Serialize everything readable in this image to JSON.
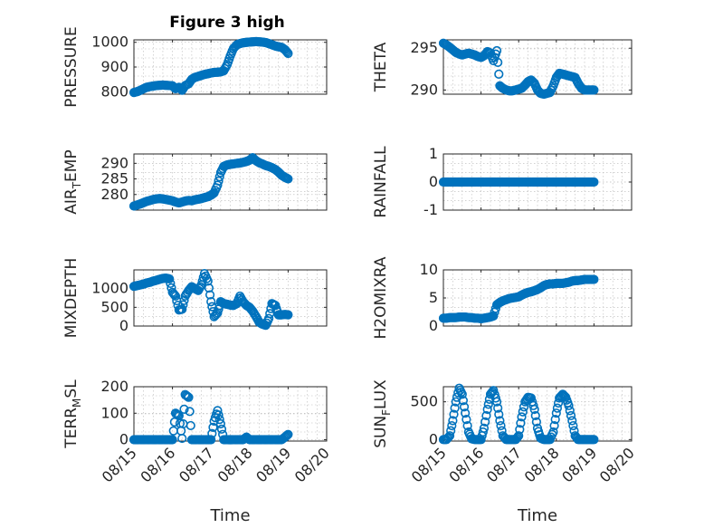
{
  "figure": {
    "title": "Figure 3 high",
    "marker_color": "#0072BD"
  },
  "chart_data": [
    {
      "type": "scatter",
      "panel": "top-left",
      "title": "Figure 3 high",
      "ylabel": "PRESSURE",
      "xlabel": "",
      "x_unit": "days since 08/15",
      "xlim": [
        0,
        5
      ],
      "ylim": [
        790,
        1010
      ],
      "yticks": [
        800,
        900,
        1000
      ],
      "xticks": [
        0,
        1,
        2,
        3,
        4,
        5
      ],
      "xtick_labels": [
        "08/15",
        "08/16",
        "08/17",
        "08/18",
        "08/19",
        "08/20"
      ],
      "show_xtick_labels": false,
      "grid": true,
      "x": [
        0.0,
        0.08,
        0.17,
        0.25,
        0.33,
        0.42,
        0.5,
        0.58,
        0.67,
        0.75,
        0.83,
        0.92,
        1.0,
        1.08,
        1.17,
        1.25,
        1.33,
        1.42,
        1.5,
        1.58,
        1.67,
        1.75,
        1.83,
        1.92,
        2.0,
        2.08,
        2.17,
        2.25,
        2.33,
        2.42,
        2.5,
        2.58,
        2.67,
        2.75,
        2.83,
        2.92,
        3.0,
        3.08,
        3.17,
        3.25,
        3.33,
        3.42,
        3.5,
        3.58,
        3.67,
        3.75,
        3.83,
        3.92,
        4.0
      ],
      "y": [
        797,
        800,
        806,
        812,
        818,
        821,
        823,
        825,
        826,
        827,
        826,
        825,
        824,
        812,
        818,
        806,
        825,
        832,
        850,
        858,
        862,
        866,
        870,
        873,
        876,
        878,
        879,
        880,
        885,
        910,
        945,
        975,
        990,
        995,
        998,
        1000,
        1001,
        1002,
        1003,
        1002,
        1001,
        999,
        995,
        990,
        985,
        982,
        980,
        970,
        955
      ]
    },
    {
      "type": "scatter",
      "panel": "top-right",
      "ylabel": "THETA",
      "xlabel": "",
      "x_unit": "days since 08/15",
      "xlim": [
        0,
        5
      ],
      "ylim": [
        289.5,
        296
      ],
      "yticks": [
        290,
        295
      ],
      "xticks": [
        0,
        1,
        2,
        3,
        4,
        5
      ],
      "xtick_labels": [
        "08/15",
        "08/16",
        "08/17",
        "08/18",
        "08/19",
        "08/20"
      ],
      "show_xtick_labels": false,
      "grid": true,
      "x": [
        0.0,
        0.08,
        0.17,
        0.25,
        0.33,
        0.42,
        0.5,
        0.58,
        0.67,
        0.75,
        0.83,
        0.92,
        1.0,
        1.08,
        1.17,
        1.25,
        1.33,
        1.42,
        1.5,
        1.58,
        1.67,
        1.75,
        1.83,
        1.92,
        2.0,
        2.08,
        2.17,
        2.25,
        2.33,
        2.42,
        2.5,
        2.58,
        2.67,
        2.75,
        2.83,
        2.92,
        3.0,
        3.08,
        3.17,
        3.25,
        3.33,
        3.42,
        3.5,
        3.58,
        3.67,
        3.75,
        3.83,
        3.92,
        4.0
      ],
      "y": [
        295.6,
        295.4,
        295.1,
        294.8,
        294.5,
        294.3,
        294.2,
        294.3,
        294.4,
        294.3,
        294.2,
        294.0,
        293.9,
        294.1,
        294.6,
        294.4,
        293.5,
        294.7,
        290.5,
        290.2,
        290.0,
        289.9,
        289.9,
        290.0,
        290.1,
        290.2,
        290.6,
        291.0,
        291.2,
        290.8,
        290.0,
        289.6,
        289.5,
        289.6,
        289.7,
        290.5,
        291.5,
        292.0,
        291.9,
        291.8,
        291.7,
        291.6,
        291.5,
        290.8,
        290.2,
        290.0,
        290.0,
        290.0,
        290.0
      ]
    },
    {
      "type": "scatter",
      "panel": "second-left",
      "ylabel": "AIR_TEMP",
      "xlabel": "",
      "x_unit": "days since 08/15",
      "xlim": [
        0,
        5
      ],
      "ylim": [
        275,
        293
      ],
      "yticks": [
        280,
        285,
        290
      ],
      "xticks": [
        0,
        1,
        2,
        3,
        4,
        5
      ],
      "xtick_labels": [
        "08/15",
        "08/16",
        "08/17",
        "08/18",
        "08/19",
        "08/20"
      ],
      "show_xtick_labels": false,
      "grid": true,
      "x": [
        0.0,
        0.08,
        0.17,
        0.25,
        0.33,
        0.42,
        0.5,
        0.58,
        0.67,
        0.75,
        0.83,
        0.92,
        1.0,
        1.08,
        1.17,
        1.25,
        1.33,
        1.42,
        1.5,
        1.58,
        1.67,
        1.75,
        1.83,
        1.92,
        2.0,
        2.08,
        2.17,
        2.25,
        2.33,
        2.42,
        2.5,
        2.58,
        2.67,
        2.75,
        2.83,
        2.92,
        3.0,
        3.08,
        3.17,
        3.25,
        3.33,
        3.42,
        3.5,
        3.58,
        3.67,
        3.75,
        3.83,
        3.92,
        4.0
      ],
      "y": [
        276.3,
        276.6,
        277.0,
        277.4,
        277.8,
        278.1,
        278.4,
        278.6,
        278.7,
        278.6,
        278.4,
        278.2,
        278.0,
        277.6,
        277.3,
        277.6,
        277.9,
        278.1,
        278.0,
        278.3,
        278.5,
        278.7,
        279.0,
        279.3,
        279.8,
        280.5,
        283.0,
        287.0,
        289.0,
        289.5,
        289.7,
        289.8,
        290.0,
        290.1,
        290.3,
        290.6,
        291.0,
        291.8,
        290.8,
        290.2,
        289.8,
        289.3,
        289.0,
        288.6,
        288.0,
        287.2,
        286.2,
        285.5,
        285.0
      ]
    },
    {
      "type": "scatter",
      "panel": "second-right",
      "ylabel": "RAINFALL",
      "xlabel": "",
      "x_unit": "days since 08/15",
      "xlim": [
        0,
        5
      ],
      "ylim": [
        -1,
        1
      ],
      "yticks": [
        -1,
        0,
        1
      ],
      "xticks": [
        0,
        1,
        2,
        3,
        4,
        5
      ],
      "xtick_labels": [
        "08/15",
        "08/16",
        "08/17",
        "08/18",
        "08/19",
        "08/20"
      ],
      "show_xtick_labels": false,
      "grid": true,
      "x": [
        0.0,
        0.08,
        0.17,
        0.25,
        0.33,
        0.42,
        0.5,
        0.58,
        0.67,
        0.75,
        0.83,
        0.92,
        1.0,
        1.08,
        1.17,
        1.25,
        1.33,
        1.42,
        1.5,
        1.58,
        1.67,
        1.75,
        1.83,
        1.92,
        2.0,
        2.08,
        2.17,
        2.25,
        2.33,
        2.42,
        2.5,
        2.58,
        2.67,
        2.75,
        2.83,
        2.92,
        3.0,
        3.08,
        3.17,
        3.25,
        3.33,
        3.42,
        3.5,
        3.58,
        3.67,
        3.75,
        3.83,
        3.92,
        4.0
      ],
      "y": [
        0,
        0,
        0,
        0,
        0,
        0,
        0,
        0,
        0,
        0,
        0,
        0,
        0,
        0,
        0,
        0,
        0,
        0,
        0,
        0,
        0,
        0,
        0,
        0,
        0,
        0,
        0,
        0,
        0,
        0,
        0,
        0,
        0,
        0,
        0,
        0,
        0,
        0,
        0,
        0,
        0,
        0,
        0,
        0,
        0,
        0,
        0,
        0,
        0
      ]
    },
    {
      "type": "scatter",
      "panel": "third-left",
      "ylabel": "MIXDEPTH",
      "xlabel": "",
      "x_unit": "days since 08/15",
      "xlim": [
        0,
        5
      ],
      "ylim": [
        0,
        1500
      ],
      "yticks": [
        0,
        500,
        1000
      ],
      "xticks": [
        0,
        1,
        2,
        3,
        4,
        5
      ],
      "xtick_labels": [
        "08/15",
        "08/16",
        "08/17",
        "08/18",
        "08/19",
        "08/20"
      ],
      "show_xtick_labels": false,
      "grid": true,
      "x": [
        0.0,
        0.08,
        0.17,
        0.25,
        0.33,
        0.42,
        0.5,
        0.58,
        0.67,
        0.75,
        0.83,
        0.92,
        1.0,
        1.08,
        1.17,
        1.25,
        1.33,
        1.42,
        1.5,
        1.58,
        1.67,
        1.75,
        1.83,
        1.92,
        2.0,
        2.08,
        2.17,
        2.25,
        2.33,
        2.42,
        2.5,
        2.58,
        2.67,
        2.75,
        2.83,
        2.92,
        3.0,
        3.08,
        3.17,
        3.25,
        3.33,
        3.42,
        3.5,
        3.58,
        3.67,
        3.75,
        3.83,
        3.92,
        4.0
      ],
      "y": [
        1060,
        1080,
        1100,
        1120,
        1150,
        1170,
        1200,
        1220,
        1250,
        1270,
        1280,
        1260,
        900,
        800,
        430,
        450,
        800,
        950,
        1050,
        1000,
        950,
        1100,
        1400,
        1200,
        650,
        250,
        350,
        650,
        600,
        580,
        560,
        550,
        600,
        800,
        650,
        550,
        500,
        400,
        250,
        100,
        50,
        20,
        200,
        600,
        550,
        300,
        300,
        310,
        300
      ]
    },
    {
      "type": "scatter",
      "panel": "third-right",
      "ylabel": "H2OMIXRA",
      "xlabel": "",
      "x_unit": "days since 08/15",
      "xlim": [
        0,
        5
      ],
      "ylim": [
        0,
        10
      ],
      "yticks": [
        0,
        5,
        10
      ],
      "xticks": [
        0,
        1,
        2,
        3,
        4,
        5
      ],
      "xtick_labels": [
        "08/15",
        "08/16",
        "08/17",
        "08/18",
        "08/19",
        "08/20"
      ],
      "show_xtick_labels": false,
      "grid": true,
      "x": [
        0.0,
        0.08,
        0.17,
        0.25,
        0.33,
        0.42,
        0.5,
        0.58,
        0.67,
        0.75,
        0.83,
        0.92,
        1.0,
        1.08,
        1.17,
        1.25,
        1.33,
        1.42,
        1.5,
        1.58,
        1.67,
        1.75,
        1.83,
        1.92,
        2.0,
        2.08,
        2.17,
        2.25,
        2.33,
        2.42,
        2.5,
        2.58,
        2.67,
        2.75,
        2.83,
        2.92,
        3.0,
        3.08,
        3.17,
        3.25,
        3.33,
        3.42,
        3.5,
        3.58,
        3.67,
        3.75,
        3.83,
        3.92,
        4.0
      ],
      "y": [
        1.4,
        1.4,
        1.5,
        1.5,
        1.5,
        1.6,
        1.6,
        1.6,
        1.5,
        1.5,
        1.4,
        1.4,
        1.3,
        1.4,
        1.5,
        1.6,
        1.8,
        3.8,
        4.2,
        4.5,
        4.7,
        4.9,
        5.0,
        5.1,
        5.2,
        5.5,
        5.8,
        6.0,
        6.1,
        6.3,
        6.5,
        6.8,
        7.2,
        7.4,
        7.5,
        7.5,
        7.6,
        7.6,
        7.6,
        7.7,
        7.8,
        8.0,
        8.1,
        8.1,
        8.2,
        8.3,
        8.3,
        8.3,
        8.3
      ]
    },
    {
      "type": "scatter",
      "panel": "bottom-left",
      "ylabel": "TERR_MSL",
      "xlabel": "Time",
      "x_unit": "days since 08/15",
      "xlim": [
        0,
        5
      ],
      "ylim": [
        -5,
        200
      ],
      "yticks": [
        0,
        100,
        200
      ],
      "xticks": [
        0,
        1,
        2,
        3,
        4,
        5
      ],
      "xtick_labels": [
        "08/15",
        "08/16",
        "08/17",
        "08/18",
        "08/19",
        "08/20"
      ],
      "show_xtick_labels": true,
      "grid": true,
      "x": [
        0.0,
        0.08,
        0.17,
        0.25,
        0.33,
        0.42,
        0.5,
        0.58,
        0.67,
        0.75,
        0.83,
        0.92,
        1.0,
        1.08,
        1.17,
        1.25,
        1.33,
        1.42,
        1.5,
        1.58,
        1.67,
        1.75,
        1.83,
        1.92,
        2.0,
        2.08,
        2.17,
        2.25,
        2.33,
        2.42,
        2.5,
        2.58,
        2.67,
        2.75,
        2.83,
        2.92,
        3.0,
        3.08,
        3.17,
        3.25,
        3.33,
        3.42,
        3.5,
        3.58,
        3.67,
        3.75,
        3.83,
        3.92,
        4.0
      ],
      "y": [
        0,
        0,
        0,
        0,
        0,
        0,
        0,
        0,
        0,
        0,
        0,
        0,
        0,
        100,
        90,
        5,
        170,
        160,
        0,
        0,
        0,
        0,
        0,
        0,
        0,
        70,
        110,
        60,
        0,
        0,
        0,
        0,
        0,
        0,
        0,
        10,
        0,
        0,
        0,
        0,
        0,
        0,
        0,
        0,
        0,
        0,
        0,
        10,
        20
      ]
    },
    {
      "type": "scatter",
      "panel": "bottom-right",
      "ylabel": "SUN_FLUX",
      "xlabel": "Time",
      "x_unit": "days since 08/15",
      "xlim": [
        0,
        5
      ],
      "ylim": [
        -20,
        700
      ],
      "yticks": [
        0,
        500
      ],
      "xticks": [
        0,
        1,
        2,
        3,
        4,
        5
      ],
      "xtick_labels": [
        "08/15",
        "08/16",
        "08/17",
        "08/18",
        "08/19",
        "08/20"
      ],
      "show_xtick_labels": true,
      "grid": true,
      "x": [
        0.0,
        0.08,
        0.17,
        0.25,
        0.33,
        0.42,
        0.5,
        0.58,
        0.67,
        0.75,
        0.83,
        0.92,
        1.0,
        1.08,
        1.17,
        1.25,
        1.33,
        1.42,
        1.5,
        1.58,
        1.67,
        1.75,
        1.83,
        1.92,
        2.0,
        2.08,
        2.17,
        2.25,
        2.33,
        2.42,
        2.5,
        2.58,
        2.67,
        2.75,
        2.83,
        2.92,
        3.0,
        3.08,
        3.17,
        3.25,
        3.33,
        3.42,
        3.5,
        3.58,
        3.67,
        3.75,
        3.83,
        3.92,
        4.0
      ],
      "y": [
        0,
        0,
        50,
        250,
        500,
        680,
        600,
        350,
        100,
        10,
        0,
        0,
        0,
        150,
        400,
        600,
        650,
        500,
        250,
        50,
        0,
        0,
        0,
        0,
        50,
        300,
        500,
        560,
        550,
        400,
        150,
        20,
        0,
        0,
        0,
        100,
        350,
        550,
        600,
        560,
        450,
        250,
        50,
        0,
        0,
        0,
        0,
        0,
        0
      ]
    }
  ]
}
